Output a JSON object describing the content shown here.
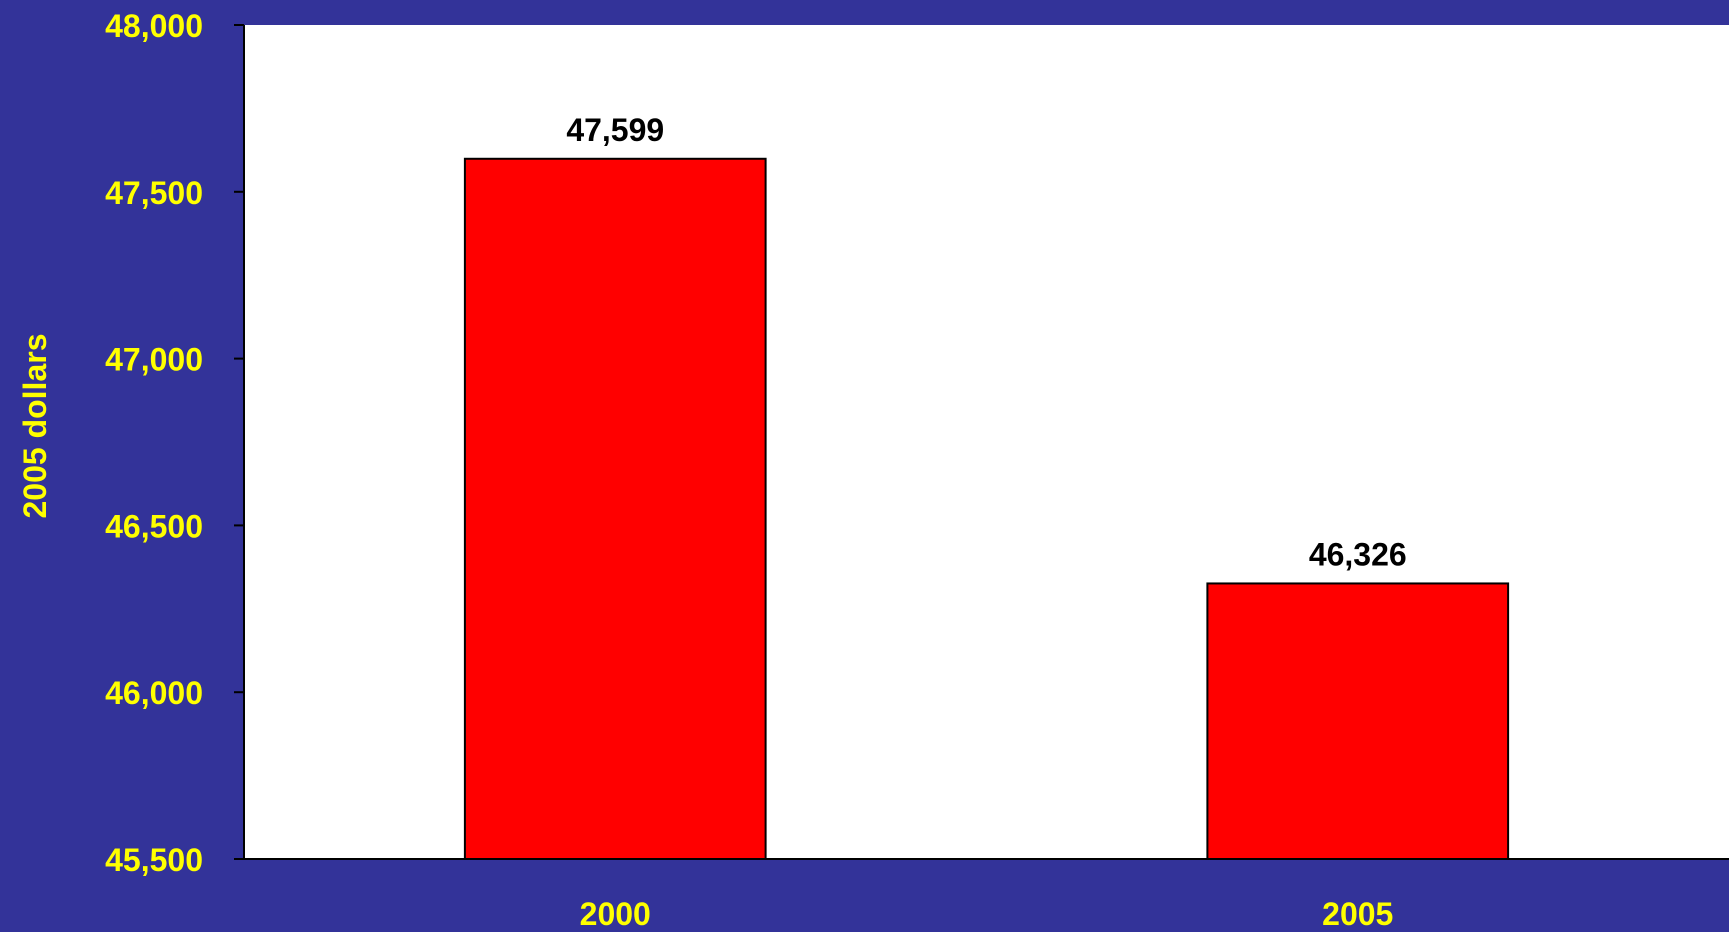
{
  "colors": {
    "background": "#333399",
    "plot_area": "#ffffff",
    "bar_fill": "#ff0000",
    "axis_text": "#ffff00",
    "data_label": "#000000"
  },
  "chart_data": {
    "type": "bar",
    "title": "",
    "xlabel": "",
    "ylabel": "2005 dollars",
    "categories": [
      "2000",
      "2005"
    ],
    "values": [
      47599,
      46326
    ],
    "data_labels": [
      "47,599",
      "46,326"
    ],
    "ylim": [
      45500,
      48000
    ],
    "yticks": [
      45500,
      46000,
      46500,
      47000,
      47500,
      48000
    ],
    "ytick_labels": [
      "45,500",
      "46,000",
      "46,500",
      "47,000",
      "47,500",
      "48,000"
    ],
    "grid": false,
    "legend": "none"
  }
}
